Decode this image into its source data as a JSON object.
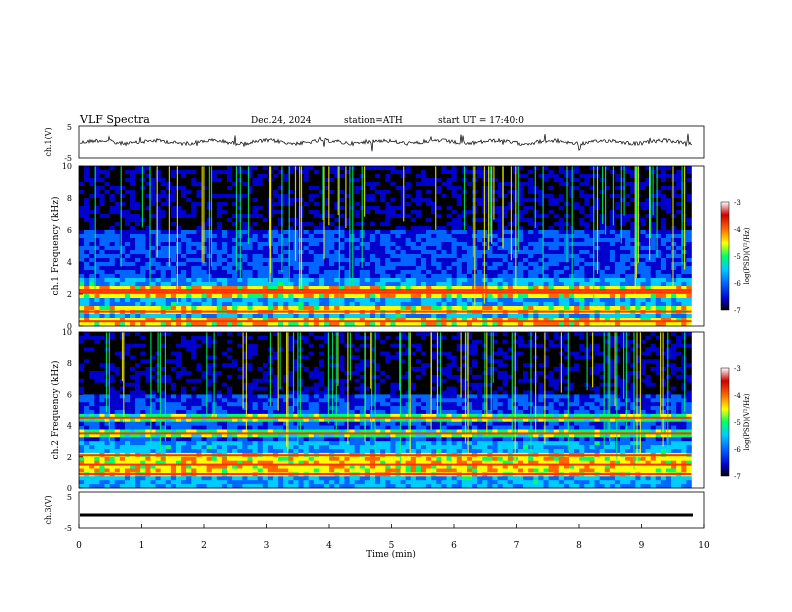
{
  "header": {
    "title": "VLF  Spectra",
    "date": "Dec.24, 2024",
    "station": "station=ATH",
    "start": "start  UT  =   17:40:0"
  },
  "chart_data": [
    {
      "type": "line",
      "panel": "ch1-waveform",
      "ylabel": "ch.1(V)",
      "ylim": [
        -5,
        5
      ],
      "yticks": [
        "5",
        "-5"
      ],
      "xlim": [
        0,
        10
      ],
      "baseline": 0,
      "description_values": "noisy waveform centred near 0 V with sporadic spikes"
    },
    {
      "type": "heatmap",
      "panel": "ch1-spectrogram",
      "ylabel": "ch.1  Frequency  (kHz)",
      "ylim": [
        0,
        10
      ],
      "yticks": [
        "0",
        "2",
        "4",
        "6",
        "8",
        "10"
      ],
      "xlim": [
        0,
        9.8
      ],
      "bands_khz": [
        0.3,
        0.9,
        2.1,
        2.25
      ],
      "colorbar": {
        "label": "log(PSD)(V²/Hz)",
        "range": [
          -7,
          -3
        ],
        "ticks": [
          "-3",
          "-4",
          "-5",
          "-6",
          "-7"
        ]
      }
    },
    {
      "type": "heatmap",
      "panel": "ch2-spectrogram",
      "ylabel": "ch.2  Frequency  (kHz)",
      "ylim": [
        0,
        10
      ],
      "yticks": [
        "0",
        "2",
        "4",
        "6",
        "8",
        "10"
      ],
      "xlim": [
        0,
        9.8
      ],
      "bands_khz": [
        0.9,
        1.5,
        2.1,
        3.5,
        4.5
      ],
      "colorbar": {
        "label": "log(PSD)(V²/Hz)",
        "range": [
          -7,
          -3
        ],
        "ticks": [
          "-3",
          "-4",
          "-5",
          "-6",
          "-7"
        ]
      }
    },
    {
      "type": "line",
      "panel": "ch3-waveform",
      "ylabel": "ch.3(V)",
      "ylim": [
        -5,
        5
      ],
      "yticks": [
        "5",
        "-5"
      ],
      "xlim": [
        0,
        10
      ],
      "baseline": -1.4,
      "xlabel": "Time  (min)",
      "xticks": [
        "0",
        "1",
        "2",
        "3",
        "4",
        "5",
        "6",
        "7",
        "8",
        "9",
        "10"
      ]
    }
  ],
  "colors": {
    "scale": [
      "#000000",
      "#0000cc",
      "#0066ff",
      "#00ccff",
      "#00ff66",
      "#ffff00",
      "#ff6600",
      "#cc0000",
      "#ffffff"
    ]
  }
}
